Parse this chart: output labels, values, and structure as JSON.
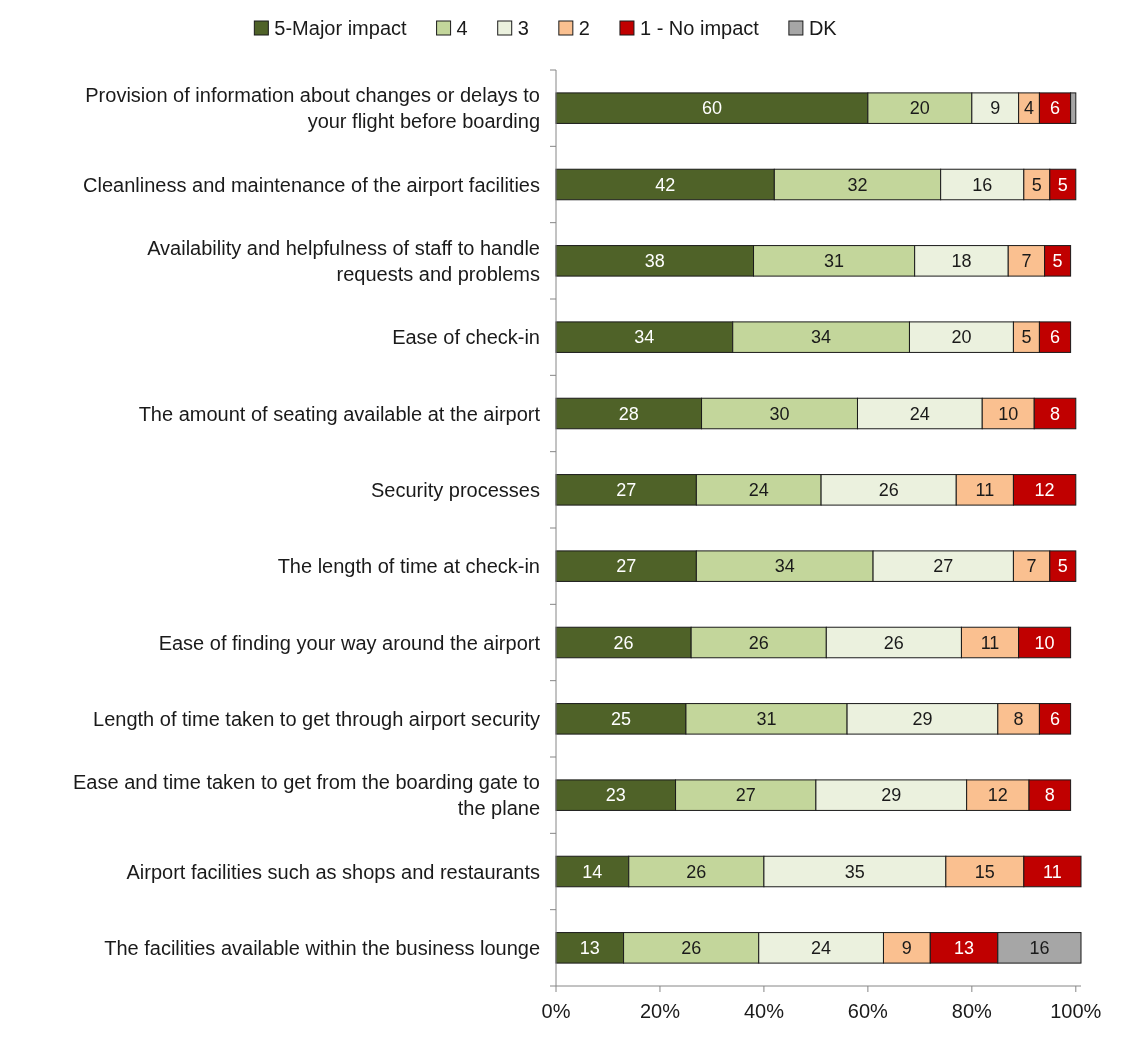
{
  "chart_data": {
    "type": "bar",
    "orientation": "horizontal",
    "stacked": true,
    "legend": "top",
    "grid": false,
    "categories": [
      "Provision of information about changes or delays to your flight before boarding",
      "Cleanliness and maintenance of the airport facilities",
      "Availability and helpfulness of staff to handle requests and problems",
      "Ease of check-in",
      "The amount of seating available at the airport",
      "Security processes",
      "The length of time at check-in",
      "Ease of finding your way around the airport",
      "Length of time taken to get through airport security",
      "Ease and time taken to get from the boarding gate to the plane",
      "Airport facilities such as shops and restaurants",
      "The facilities available within the business lounge"
    ],
    "xlim": [
      0,
      101
    ],
    "xticks": [
      {
        "value": 0,
        "label": "0%"
      },
      {
        "value": 20,
        "label": "20%"
      },
      {
        "value": 40,
        "label": "40%"
      },
      {
        "value": 60,
        "label": "60%"
      },
      {
        "value": 80,
        "label": "80%"
      },
      {
        "value": 100,
        "label": "100%"
      }
    ],
    "series": [
      {
        "name": "5-Major impact",
        "color": "#4f6228",
        "values": [
          60,
          42,
          38,
          34,
          28,
          27,
          27,
          26,
          25,
          23,
          14,
          13
        ],
        "value_labels": [
          "60",
          "42",
          "38",
          "34",
          "28",
          "27",
          "27",
          "26",
          "25",
          "23",
          "14",
          "13"
        ]
      },
      {
        "name": "4",
        "color": "#c3d69b",
        "values": [
          20,
          32,
          31,
          34,
          30,
          24,
          34,
          26,
          31,
          27,
          26,
          26
        ],
        "value_labels": [
          "20",
          "32",
          "31",
          "34",
          "30",
          "24",
          "34",
          "26",
          "31",
          "27",
          "26",
          "26"
        ]
      },
      {
        "name": "3",
        "color": "#ebf1de",
        "values": [
          9,
          16,
          18,
          20,
          24,
          26,
          27,
          26,
          29,
          29,
          35,
          24
        ],
        "value_labels": [
          "9",
          "16",
          "18",
          "20",
          "24",
          "26",
          "27",
          "26",
          "29",
          "29",
          "35",
          "24"
        ]
      },
      {
        "name": "2",
        "color": "#fac090",
        "values": [
          4,
          5,
          7,
          5,
          10,
          11,
          7,
          11,
          8,
          12,
          15,
          9
        ],
        "value_labels": [
          "4",
          "5",
          "7",
          "5",
          "10",
          "11",
          "7",
          "11",
          "8",
          "12",
          "15",
          "9"
        ]
      },
      {
        "name": "1 - No impact",
        "color": "#c00000",
        "values": [
          6,
          5,
          5,
          6,
          8,
          12,
          5,
          10,
          6,
          8,
          11,
          13
        ],
        "value_labels": [
          "6",
          "5",
          "5",
          "6",
          "8",
          "12",
          "5",
          "10",
          "6",
          "8",
          "11",
          "13"
        ]
      },
      {
        "name": "DK",
        "color": "#a6a6a6",
        "values": [
          1,
          null,
          null,
          null,
          null,
          null,
          null,
          null,
          null,
          null,
          null,
          16
        ],
        "value_labels": [
          null,
          null,
          null,
          null,
          null,
          null,
          null,
          null,
          null,
          null,
          null,
          "16"
        ]
      }
    ]
  }
}
